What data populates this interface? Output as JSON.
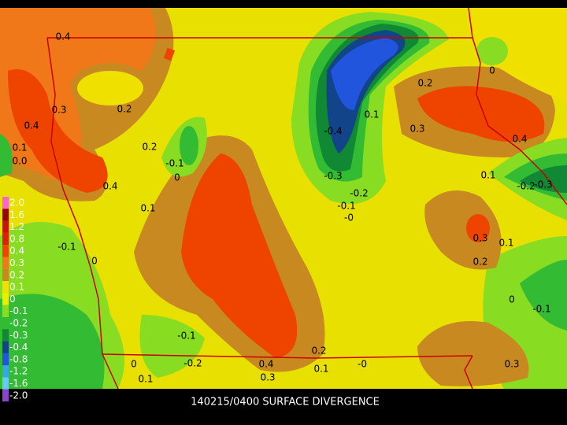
{
  "map": {
    "title": "140215/0400 SURFACE DIVERGENCE",
    "colorbar": {
      "labels": [
        "2.0",
        "1.6",
        "1.2",
        "0.8",
        "0.4",
        "0.3",
        "0.2",
        "0.1",
        "0",
        "-0.1",
        "-0.2",
        "-0.3",
        "-0.4",
        "-0.8",
        "-1.2",
        "-1.6",
        "-2.0"
      ],
      "colors": [
        "#ff66cc",
        "#990000",
        "#cc1100",
        "#dd2200",
        "#ee4400",
        "#f07818",
        "#c88a20",
        "#f0e000",
        "#e8f000",
        "#88dd22",
        "#33bb33",
        "#118833",
        "#114488",
        "#2255dd",
        "#33aadd",
        "#66ccee",
        "#8844cc"
      ]
    },
    "contour_labels": [
      "0.4",
      "0.3",
      "0.2",
      "0.4",
      "0.1",
      "0.0",
      "0.2",
      "-0.1",
      "0",
      "0.4",
      "0.1",
      "-0.1",
      "0",
      "-0.4",
      "0.1",
      "-0.3",
      "-0.2",
      "-0.1",
      "-0",
      "0.2",
      "0.3",
      "0.4",
      "0.1",
      "-0.2",
      "-0.3",
      "0.3",
      "0.1",
      "0.2",
      "0",
      "-0.1",
      "-0.1",
      "0.2",
      "0.4",
      "0.1",
      "0.3",
      "-0",
      "0.3",
      "0",
      "-0.2",
      "0.1",
      "0"
    ]
  }
}
